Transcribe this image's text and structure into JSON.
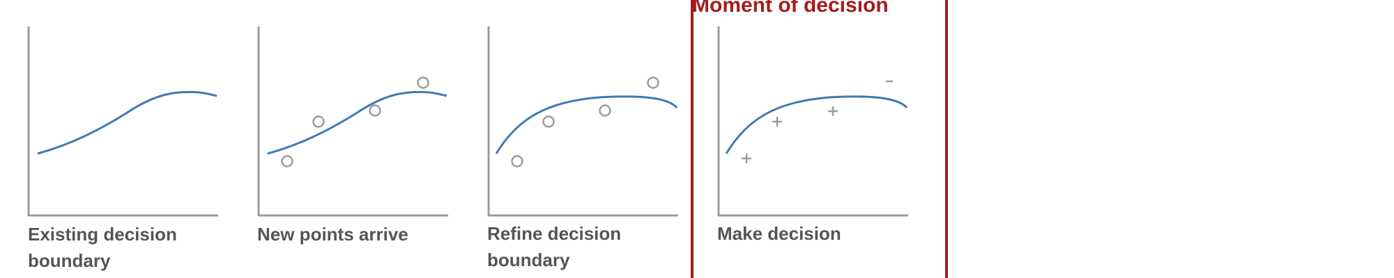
{
  "colors": {
    "axis": "#9b9b9b",
    "curve": "#3f7ab3",
    "marker": "#9b9b9b",
    "caption": "#555555",
    "highlight": "#a51c1c"
  },
  "highlight": {
    "title": "Moment of decision"
  },
  "panels": [
    {
      "caption": "Existing decision boundary",
      "caption_lines": [
        "Existing decision",
        "boundary"
      ],
      "curve": "sigmoid",
      "markers": []
    },
    {
      "caption": "New points arrive",
      "caption_lines": [
        "New points arrive"
      ],
      "curve": "sigmoid",
      "markers": [
        {
          "type": "circle"
        },
        {
          "type": "circle"
        },
        {
          "type": "circle"
        },
        {
          "type": "circle"
        }
      ]
    },
    {
      "caption": "Refine decision boundary",
      "caption_lines": [
        "Refine decision",
        "boundary"
      ],
      "curve": "concave",
      "markers": [
        {
          "type": "circle"
        },
        {
          "type": "circle"
        },
        {
          "type": "circle"
        },
        {
          "type": "circle"
        }
      ]
    },
    {
      "caption": "Make decision",
      "caption_lines": [
        "Make decision"
      ],
      "curve": "concave",
      "markers": [
        {
          "type": "plus",
          "label": "+"
        },
        {
          "type": "plus",
          "label": "+"
        },
        {
          "type": "plus",
          "label": "+"
        },
        {
          "type": "minus",
          "label": "-"
        }
      ]
    }
  ]
}
